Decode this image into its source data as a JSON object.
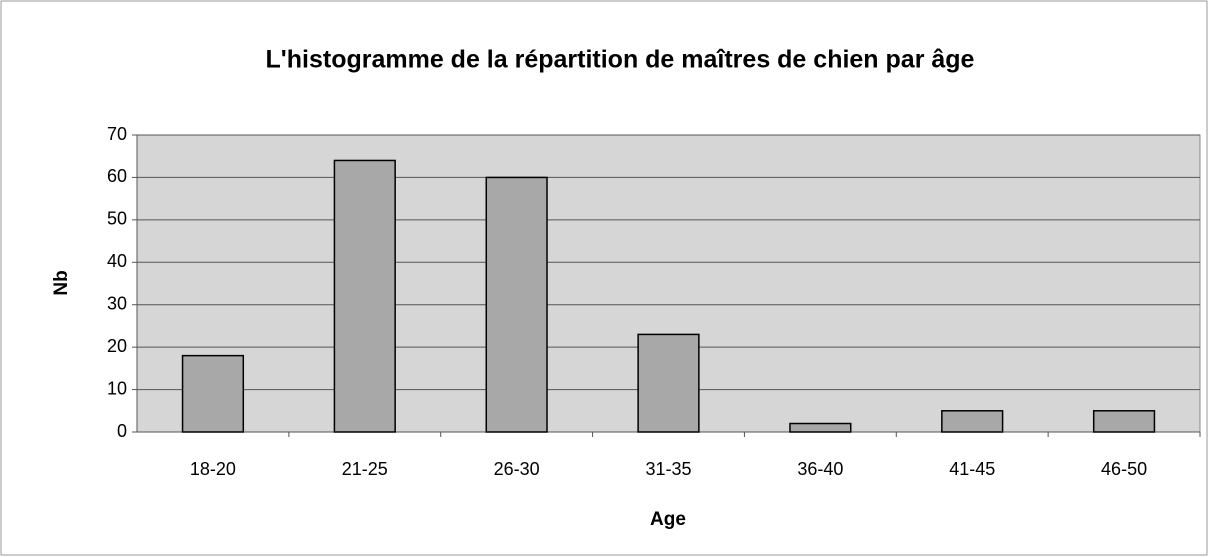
{
  "chart_data": {
    "type": "bar",
    "title": "L'histogramme de la répartition de maîtres de chien par âge",
    "x_label": "Age",
    "y_label": "Nb",
    "categories": [
      "18-20",
      "21-25",
      "26-30",
      "31-35",
      "36-40",
      "41-45",
      "46-50"
    ],
    "values": [
      18,
      64,
      60,
      23,
      2,
      5,
      5
    ],
    "color": "#a8a8a8",
    "ylim": [
      0,
      70
    ],
    "yticks": [
      0,
      10,
      20,
      30,
      40,
      50,
      60,
      70
    ],
    "grid": true
  }
}
